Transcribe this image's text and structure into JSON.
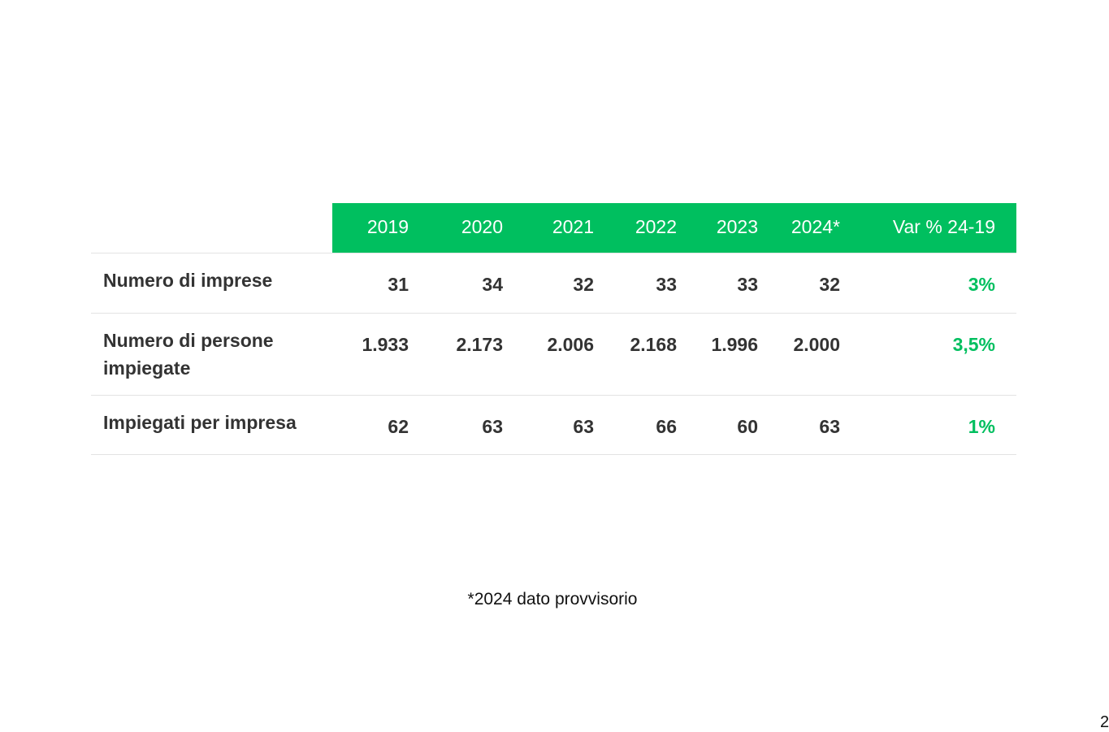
{
  "table": {
    "columns": [
      "2019",
      "2020",
      "2021",
      "2022",
      "2023",
      "2024*",
      "Var % 24-19"
    ],
    "rows": [
      {
        "label": "Numero di imprese",
        "cells": [
          "31",
          "34",
          "32",
          "33",
          "33",
          "32",
          "3%"
        ]
      },
      {
        "label": "Numero di persone impiegate",
        "cells": [
          "1.933",
          "2.173",
          "2.006",
          "2.168",
          "1.996",
          "2.000",
          "3,5%"
        ]
      },
      {
        "label": "Impiegati per impresa",
        "cells": [
          "62",
          "63",
          "63",
          "66",
          "60",
          "63",
          "1%"
        ]
      }
    ]
  },
  "footnote": "*2024 dato provvisorio",
  "page_number": "2"
}
